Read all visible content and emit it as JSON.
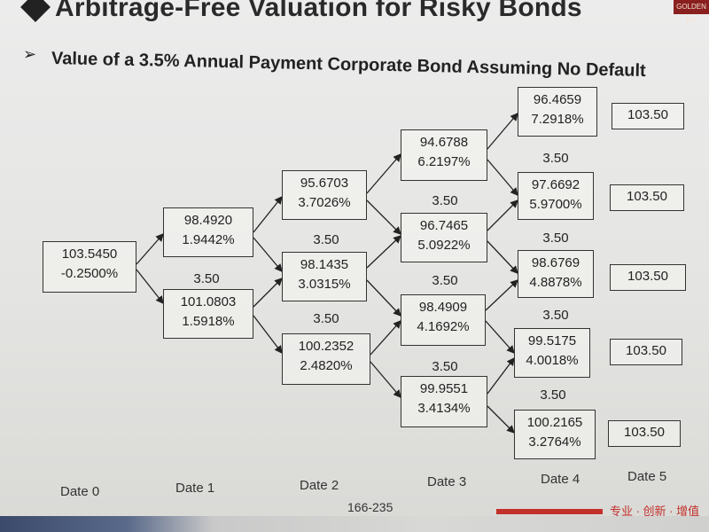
{
  "slide": {
    "title": "Arbitrage-Free Valuation for Risky Bonds",
    "subtitle": "Value of a 3.5% Annual Payment Corporate Bond Assuming No Default",
    "page_number": "166-235",
    "footer_tag": "专业 · 创新 · 增值",
    "logo_text": "GOLDEN FU"
  },
  "tree": {
    "nodes": [
      {
        "id": "d0",
        "value": "103.5450",
        "rate": "-0.2500%"
      },
      {
        "id": "d1u",
        "value": "98.4920",
        "rate": "1.9442%"
      },
      {
        "id": "d1d",
        "value": "101.0803",
        "rate": "1.5918%"
      },
      {
        "id": "d2a",
        "value": "95.6703",
        "rate": "3.7026%"
      },
      {
        "id": "d2b",
        "value": "98.1435",
        "rate": "3.0315%"
      },
      {
        "id": "d2c",
        "value": "100.2352",
        "rate": "2.4820%"
      },
      {
        "id": "d3a",
        "value": "94.6788",
        "rate": "6.2197%"
      },
      {
        "id": "d3b",
        "value": "96.7465",
        "rate": "5.0922%"
      },
      {
        "id": "d3c",
        "value": "98.4909",
        "rate": "4.1692%"
      },
      {
        "id": "d3d",
        "value": "99.9551",
        "rate": "3.4134%"
      },
      {
        "id": "d4a",
        "value": "96.4659",
        "rate": "7.2918%"
      },
      {
        "id": "d4b",
        "value": "97.6692",
        "rate": "5.9700%"
      },
      {
        "id": "d4c",
        "value": "98.6769",
        "rate": "4.8878%"
      },
      {
        "id": "d4d",
        "value": "99.5175",
        "rate": "4.0018%"
      },
      {
        "id": "d4e",
        "value": "100.2165",
        "rate": "3.2764%"
      }
    ],
    "final_values": [
      "103.50",
      "103.50",
      "103.50",
      "103.50",
      "103.50"
    ],
    "coupon": "3.50",
    "dates": [
      "Date 0",
      "Date 1",
      "Date 2",
      "Date 3",
      "Date 4",
      "Date 5"
    ]
  }
}
